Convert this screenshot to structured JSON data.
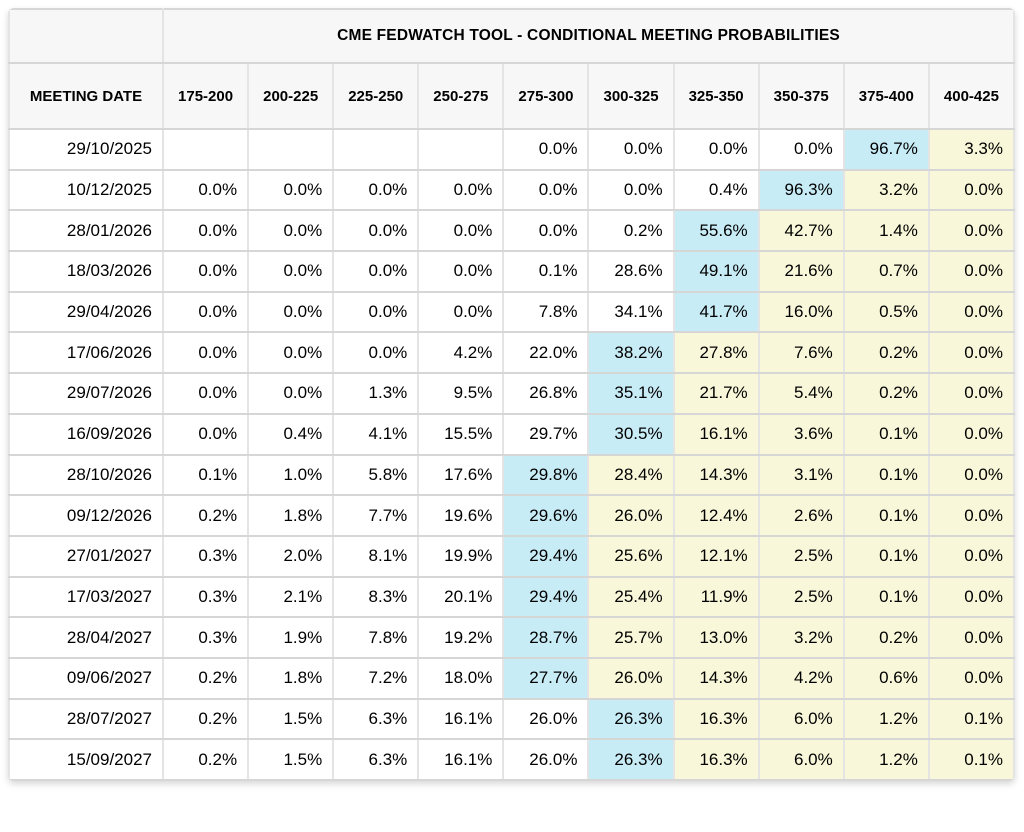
{
  "table": {
    "title": "CME FEDWATCH TOOL - CONDITIONAL MEETING PROBABILITIES",
    "date_column_header": "MEETING DATE",
    "rate_columns": [
      "175-200",
      "200-225",
      "225-250",
      "250-275",
      "275-300",
      "300-325",
      "325-350",
      "350-375",
      "375-400",
      "400-425"
    ],
    "rows": [
      {
        "date": "29/10/2025",
        "values": [
          "",
          "",
          "",
          "",
          "0.0%",
          "0.0%",
          "0.0%",
          "0.0%",
          "96.7%",
          "3.3%"
        ],
        "styles": [
          "plain",
          "plain",
          "plain",
          "plain",
          "plain",
          "plain",
          "plain",
          "plain",
          "blue",
          "yellow"
        ]
      },
      {
        "date": "10/12/2025",
        "values": [
          "0.0%",
          "0.0%",
          "0.0%",
          "0.0%",
          "0.0%",
          "0.0%",
          "0.4%",
          "96.3%",
          "3.2%",
          "0.0%"
        ],
        "styles": [
          "plain",
          "plain",
          "plain",
          "plain",
          "plain",
          "plain",
          "plain",
          "blue",
          "yellow",
          "yellow"
        ]
      },
      {
        "date": "28/01/2026",
        "values": [
          "0.0%",
          "0.0%",
          "0.0%",
          "0.0%",
          "0.0%",
          "0.2%",
          "55.6%",
          "42.7%",
          "1.4%",
          "0.0%"
        ],
        "styles": [
          "plain",
          "plain",
          "plain",
          "plain",
          "plain",
          "plain",
          "blue",
          "yellow",
          "yellow",
          "yellow"
        ]
      },
      {
        "date": "18/03/2026",
        "values": [
          "0.0%",
          "0.0%",
          "0.0%",
          "0.0%",
          "0.1%",
          "28.6%",
          "49.1%",
          "21.6%",
          "0.7%",
          "0.0%"
        ],
        "styles": [
          "plain",
          "plain",
          "plain",
          "plain",
          "plain",
          "plain",
          "blue",
          "yellow",
          "yellow",
          "yellow"
        ]
      },
      {
        "date": "29/04/2026",
        "values": [
          "0.0%",
          "0.0%",
          "0.0%",
          "0.0%",
          "7.8%",
          "34.1%",
          "41.7%",
          "16.0%",
          "0.5%",
          "0.0%"
        ],
        "styles": [
          "plain",
          "plain",
          "plain",
          "plain",
          "plain",
          "plain",
          "blue",
          "yellow",
          "yellow",
          "yellow"
        ]
      },
      {
        "date": "17/06/2026",
        "values": [
          "0.0%",
          "0.0%",
          "0.0%",
          "4.2%",
          "22.0%",
          "38.2%",
          "27.8%",
          "7.6%",
          "0.2%",
          "0.0%"
        ],
        "styles": [
          "plain",
          "plain",
          "plain",
          "plain",
          "plain",
          "blue",
          "yellow",
          "yellow",
          "yellow",
          "yellow"
        ]
      },
      {
        "date": "29/07/2026",
        "values": [
          "0.0%",
          "0.0%",
          "1.3%",
          "9.5%",
          "26.8%",
          "35.1%",
          "21.7%",
          "5.4%",
          "0.2%",
          "0.0%"
        ],
        "styles": [
          "plain",
          "plain",
          "plain",
          "plain",
          "plain",
          "blue",
          "yellow",
          "yellow",
          "yellow",
          "yellow"
        ]
      },
      {
        "date": "16/09/2026",
        "values": [
          "0.0%",
          "0.4%",
          "4.1%",
          "15.5%",
          "29.7%",
          "30.5%",
          "16.1%",
          "3.6%",
          "0.1%",
          "0.0%"
        ],
        "styles": [
          "plain",
          "plain",
          "plain",
          "plain",
          "plain",
          "blue",
          "yellow",
          "yellow",
          "yellow",
          "yellow"
        ]
      },
      {
        "date": "28/10/2026",
        "values": [
          "0.1%",
          "1.0%",
          "5.8%",
          "17.6%",
          "29.8%",
          "28.4%",
          "14.3%",
          "3.1%",
          "0.1%",
          "0.0%"
        ],
        "styles": [
          "plain",
          "plain",
          "plain",
          "plain",
          "blue",
          "yellow",
          "yellow",
          "yellow",
          "yellow",
          "yellow"
        ]
      },
      {
        "date": "09/12/2026",
        "values": [
          "0.2%",
          "1.8%",
          "7.7%",
          "19.6%",
          "29.6%",
          "26.0%",
          "12.4%",
          "2.6%",
          "0.1%",
          "0.0%"
        ],
        "styles": [
          "plain",
          "plain",
          "plain",
          "plain",
          "blue",
          "yellow",
          "yellow",
          "yellow",
          "yellow",
          "yellow"
        ]
      },
      {
        "date": "27/01/2027",
        "values": [
          "0.3%",
          "2.0%",
          "8.1%",
          "19.9%",
          "29.4%",
          "25.6%",
          "12.1%",
          "2.5%",
          "0.1%",
          "0.0%"
        ],
        "styles": [
          "plain",
          "plain",
          "plain",
          "plain",
          "blue",
          "yellow",
          "yellow",
          "yellow",
          "yellow",
          "yellow"
        ]
      },
      {
        "date": "17/03/2027",
        "values": [
          "0.3%",
          "2.1%",
          "8.3%",
          "20.1%",
          "29.4%",
          "25.4%",
          "11.9%",
          "2.5%",
          "0.1%",
          "0.0%"
        ],
        "styles": [
          "plain",
          "plain",
          "plain",
          "plain",
          "blue",
          "yellow",
          "yellow",
          "yellow",
          "yellow",
          "yellow"
        ]
      },
      {
        "date": "28/04/2027",
        "values": [
          "0.3%",
          "1.9%",
          "7.8%",
          "19.2%",
          "28.7%",
          "25.7%",
          "13.0%",
          "3.2%",
          "0.2%",
          "0.0%"
        ],
        "styles": [
          "plain",
          "plain",
          "plain",
          "plain",
          "blue",
          "yellow",
          "yellow",
          "yellow",
          "yellow",
          "yellow"
        ]
      },
      {
        "date": "09/06/2027",
        "values": [
          "0.2%",
          "1.8%",
          "7.2%",
          "18.0%",
          "27.7%",
          "26.0%",
          "14.3%",
          "4.2%",
          "0.6%",
          "0.0%"
        ],
        "styles": [
          "plain",
          "plain",
          "plain",
          "plain",
          "blue",
          "yellow",
          "yellow",
          "yellow",
          "yellow",
          "yellow"
        ]
      },
      {
        "date": "28/07/2027",
        "values": [
          "0.2%",
          "1.5%",
          "6.3%",
          "16.1%",
          "26.0%",
          "26.3%",
          "16.3%",
          "6.0%",
          "1.2%",
          "0.1%"
        ],
        "styles": [
          "plain",
          "plain",
          "plain",
          "plain",
          "plain",
          "blue",
          "yellow",
          "yellow",
          "yellow",
          "yellow"
        ]
      },
      {
        "date": "15/09/2027",
        "values": [
          "0.2%",
          "1.5%",
          "6.3%",
          "16.1%",
          "26.0%",
          "26.3%",
          "16.3%",
          "6.0%",
          "1.2%",
          "0.1%"
        ],
        "styles": [
          "plain",
          "plain",
          "plain",
          "plain",
          "plain",
          "blue",
          "yellow",
          "yellow",
          "yellow",
          "yellow"
        ]
      }
    ],
    "colors": {
      "header_bg": "#f7f7f7",
      "highlight_blue": "#c8ecf6",
      "highlight_yellow": "#f8f7d9",
      "border_horizontal": "#d6d6d6",
      "border_vertical": "#e4e4e4",
      "text": "#000000"
    }
  }
}
